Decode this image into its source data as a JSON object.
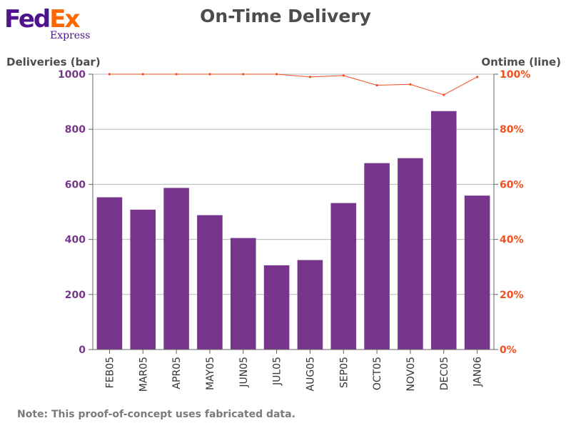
{
  "logo": {
    "text_fed": "Fed",
    "text_ex": "Ex",
    "text_express": "Express"
  },
  "colors": {
    "bar": "#77368b",
    "line": "#f05020",
    "left_axis": "#77368b",
    "right_axis": "#f05020",
    "grid": "#b8b8b8"
  },
  "note": "Note: This proof-of-concept uses fabricated data.",
  "chart_data": {
    "type": "bar",
    "title": "On-Time Delivery",
    "ylabel": "Deliveries (bar)",
    "y2label": "Ontime (line)",
    "categories": [
      "FEB05",
      "MAR05",
      "APR05",
      "MAY05",
      "JUN05",
      "JUL05",
      "AUG05",
      "SEP05",
      "OCT05",
      "NOV05",
      "DEC05",
      "JAN06"
    ],
    "ylim": [
      0,
      1000
    ],
    "y2lim": [
      0,
      100
    ],
    "yticks": [
      0,
      200,
      400,
      600,
      800,
      1000
    ],
    "y2ticks": [
      "0%",
      "20%",
      "40%",
      "60%",
      "80%",
      "100%"
    ],
    "grid": true,
    "series": [
      {
        "type": "bar",
        "axis": "left",
        "values": [
          553,
          508,
          587,
          488,
          405,
          306,
          325,
          532,
          677,
          695,
          866,
          559
        ]
      },
      {
        "type": "line",
        "axis": "right",
        "values": [
          100,
          100,
          100,
          100,
          100,
          100,
          99,
          99.5,
          96,
          96.3,
          92.5,
          99
        ]
      }
    ]
  }
}
